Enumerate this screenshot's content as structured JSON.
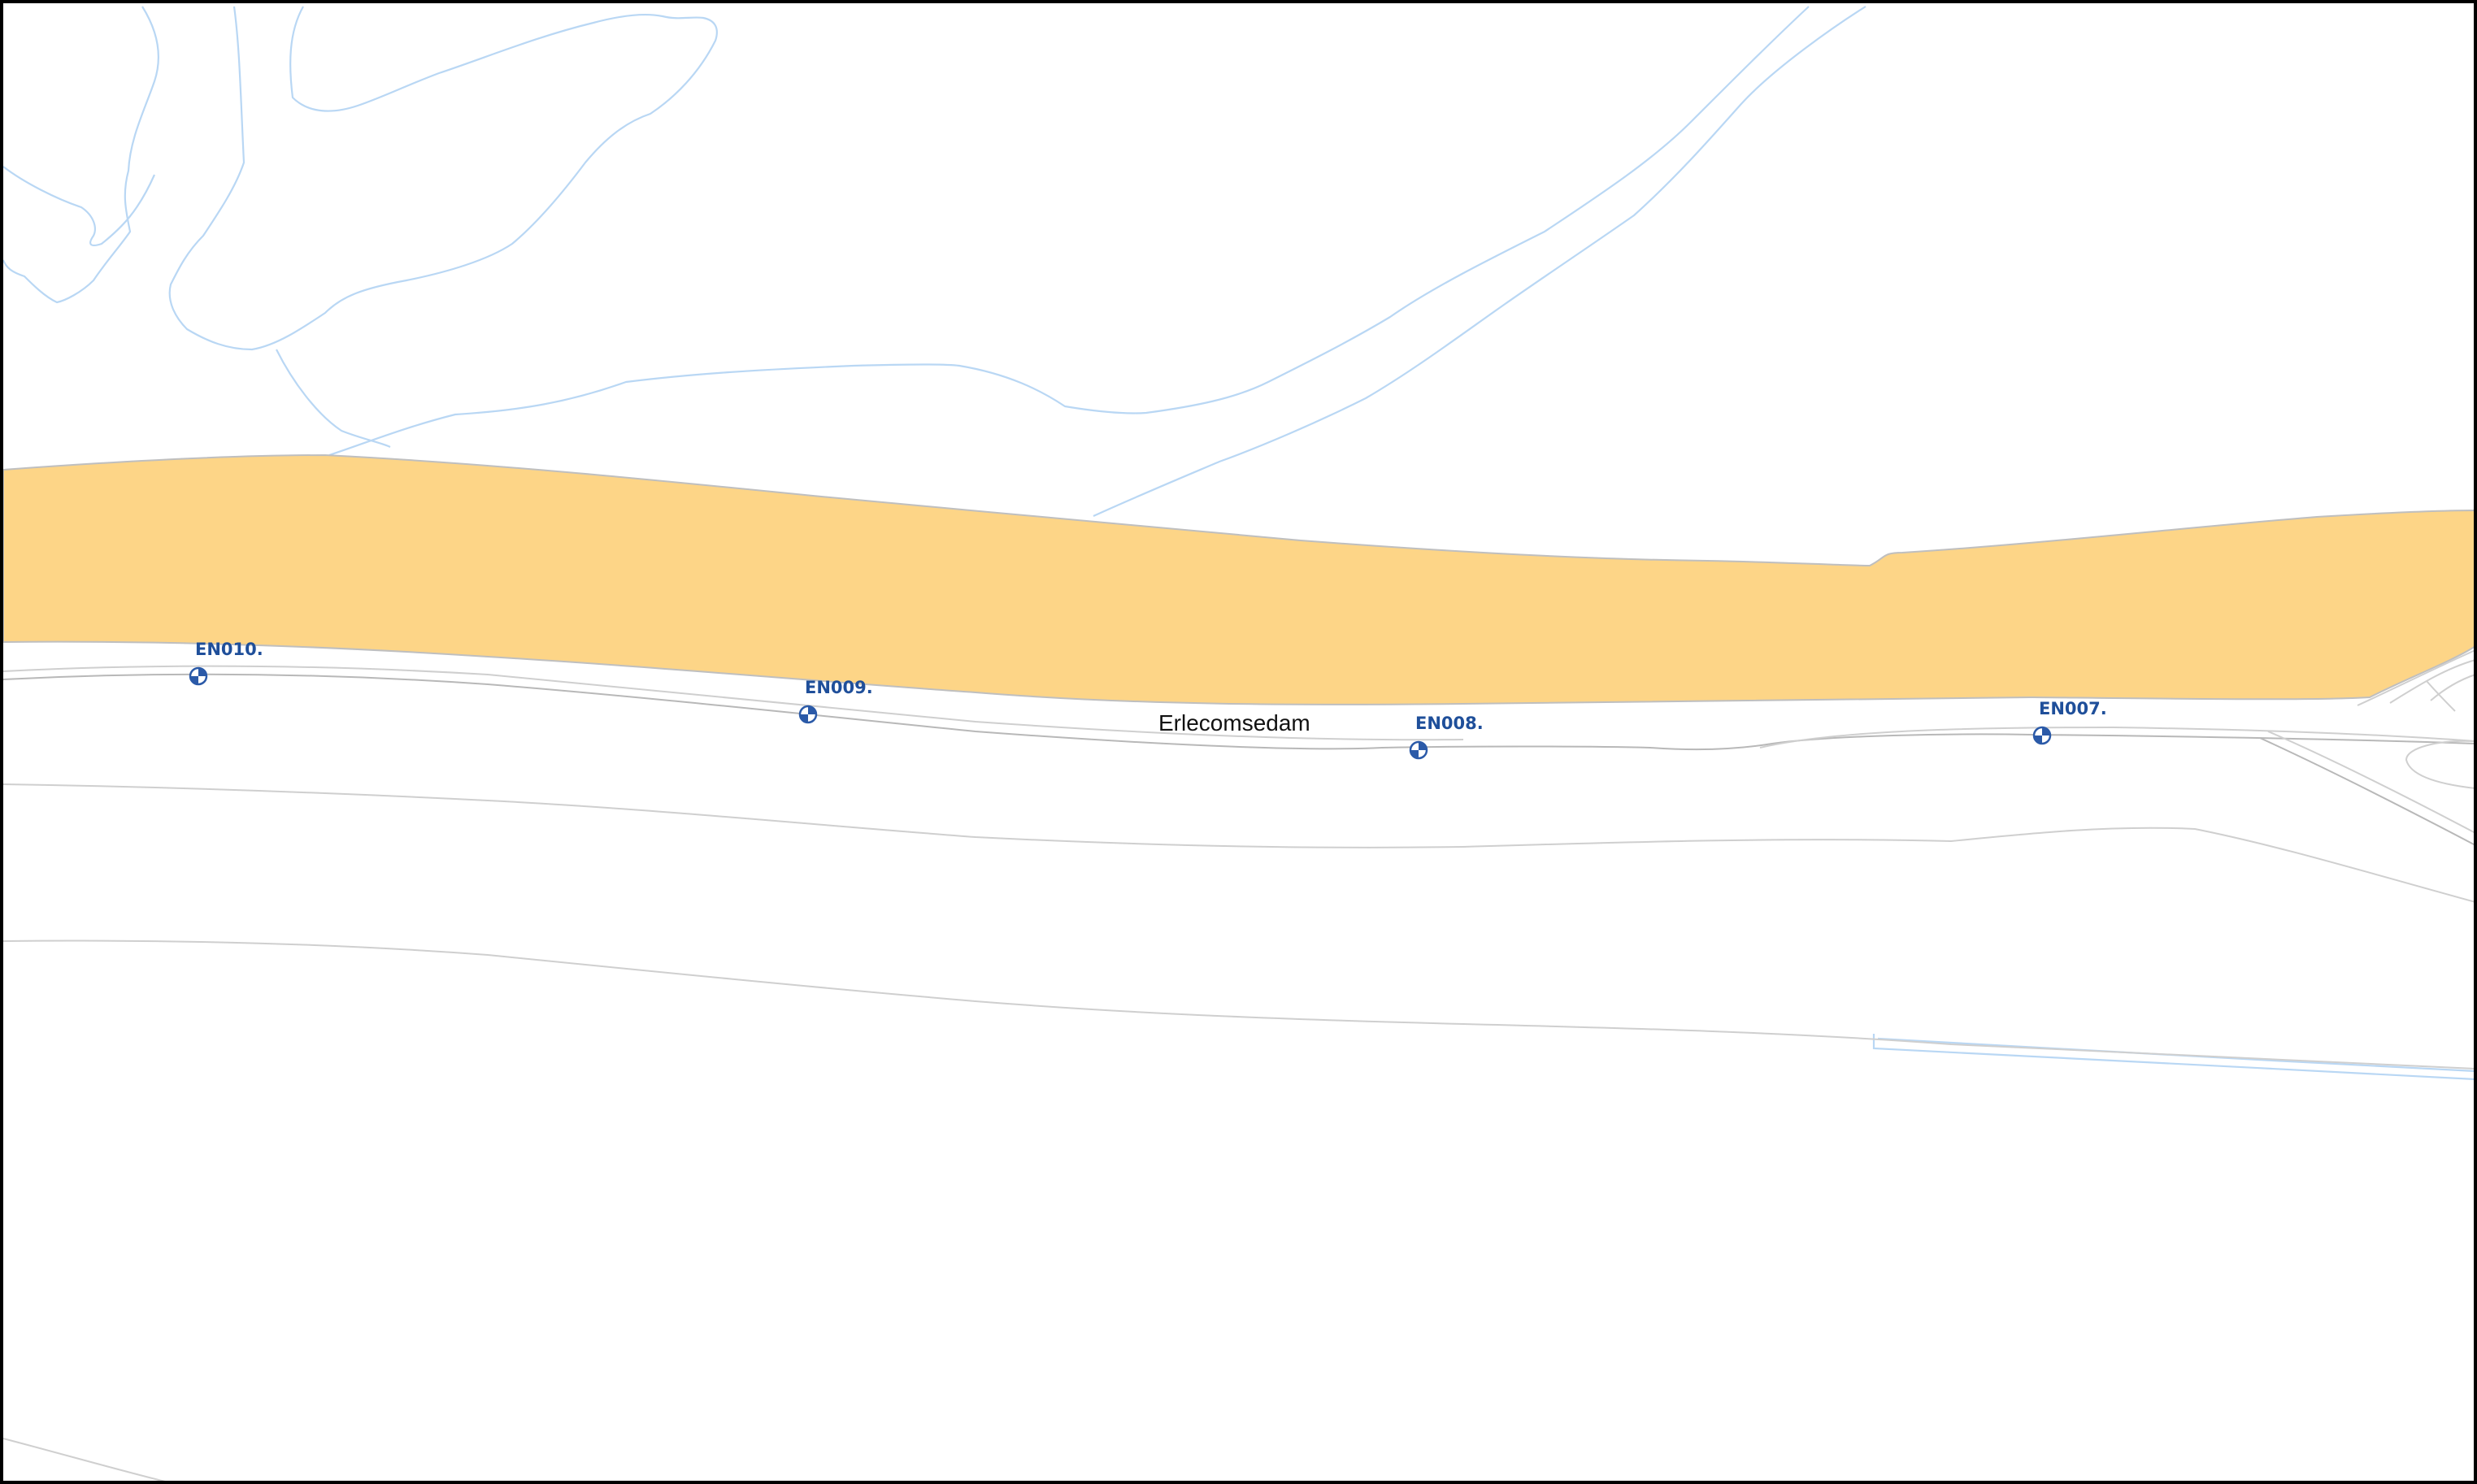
{
  "map": {
    "street_label": "Erlecomsedam",
    "colors": {
      "dike": "#fdd587",
      "water_outline": "#b9d7f4",
      "road_outline": "#cfcfcf",
      "marker_label": "#1f4f9a",
      "marker_fill": "#2b5aa8"
    },
    "markers": [
      {
        "label": "EN010.",
        "icon": "survey-point-icon"
      },
      {
        "label": "EN009.",
        "icon": "survey-point-icon"
      },
      {
        "label": "EN008.",
        "icon": "survey-point-icon"
      },
      {
        "label": "EN007.",
        "icon": "survey-point-icon"
      }
    ]
  }
}
